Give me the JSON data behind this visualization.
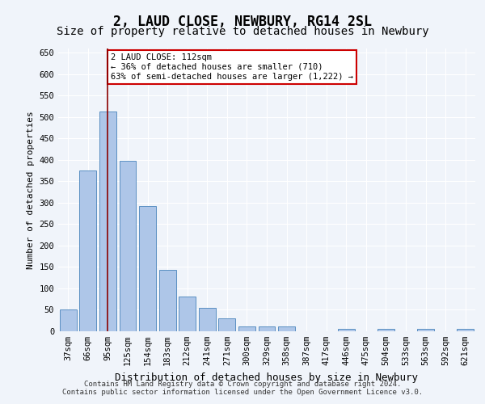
{
  "title": "2, LAUD CLOSE, NEWBURY, RG14 2SL",
  "subtitle": "Size of property relative to detached houses in Newbury",
  "xlabel": "Distribution of detached houses by size in Newbury",
  "ylabel": "Number of detached properties",
  "categories": [
    "37sqm",
    "66sqm",
    "95sqm",
    "125sqm",
    "154sqm",
    "183sqm",
    "212sqm",
    "241sqm",
    "271sqm",
    "300sqm",
    "329sqm",
    "358sqm",
    "387sqm",
    "417sqm",
    "446sqm",
    "475sqm",
    "504sqm",
    "533sqm",
    "563sqm",
    "592sqm",
    "621sqm"
  ],
  "values": [
    50,
    375,
    513,
    398,
    292,
    143,
    82,
    55,
    30,
    11,
    11,
    12,
    0,
    0,
    5,
    0,
    5,
    0,
    5,
    0,
    5
  ],
  "bar_color": "#aec6e8",
  "bar_edge_color": "#5a8fc2",
  "vline_x_index": 2,
  "vline_color": "#8b0000",
  "annotation_text": "2 LAUD CLOSE: 112sqm\n← 36% of detached houses are smaller (710)\n63% of semi-detached houses are larger (1,222) →",
  "annotation_box_color": "#ffffff",
  "annotation_border_color": "#cc0000",
  "ylim": [
    0,
    660
  ],
  "yticks": [
    0,
    50,
    100,
    150,
    200,
    250,
    300,
    350,
    400,
    450,
    500,
    550,
    600,
    650
  ],
  "background_color": "#f0f4fa",
  "footer_line1": "Contains HM Land Registry data © Crown copyright and database right 2024.",
  "footer_line2": "Contains public sector information licensed under the Open Government Licence v3.0.",
  "title_fontsize": 12,
  "subtitle_fontsize": 10,
  "xlabel_fontsize": 9,
  "ylabel_fontsize": 8,
  "tick_fontsize": 7.5,
  "footer_fontsize": 6.5,
  "annotation_fontsize": 7.5
}
